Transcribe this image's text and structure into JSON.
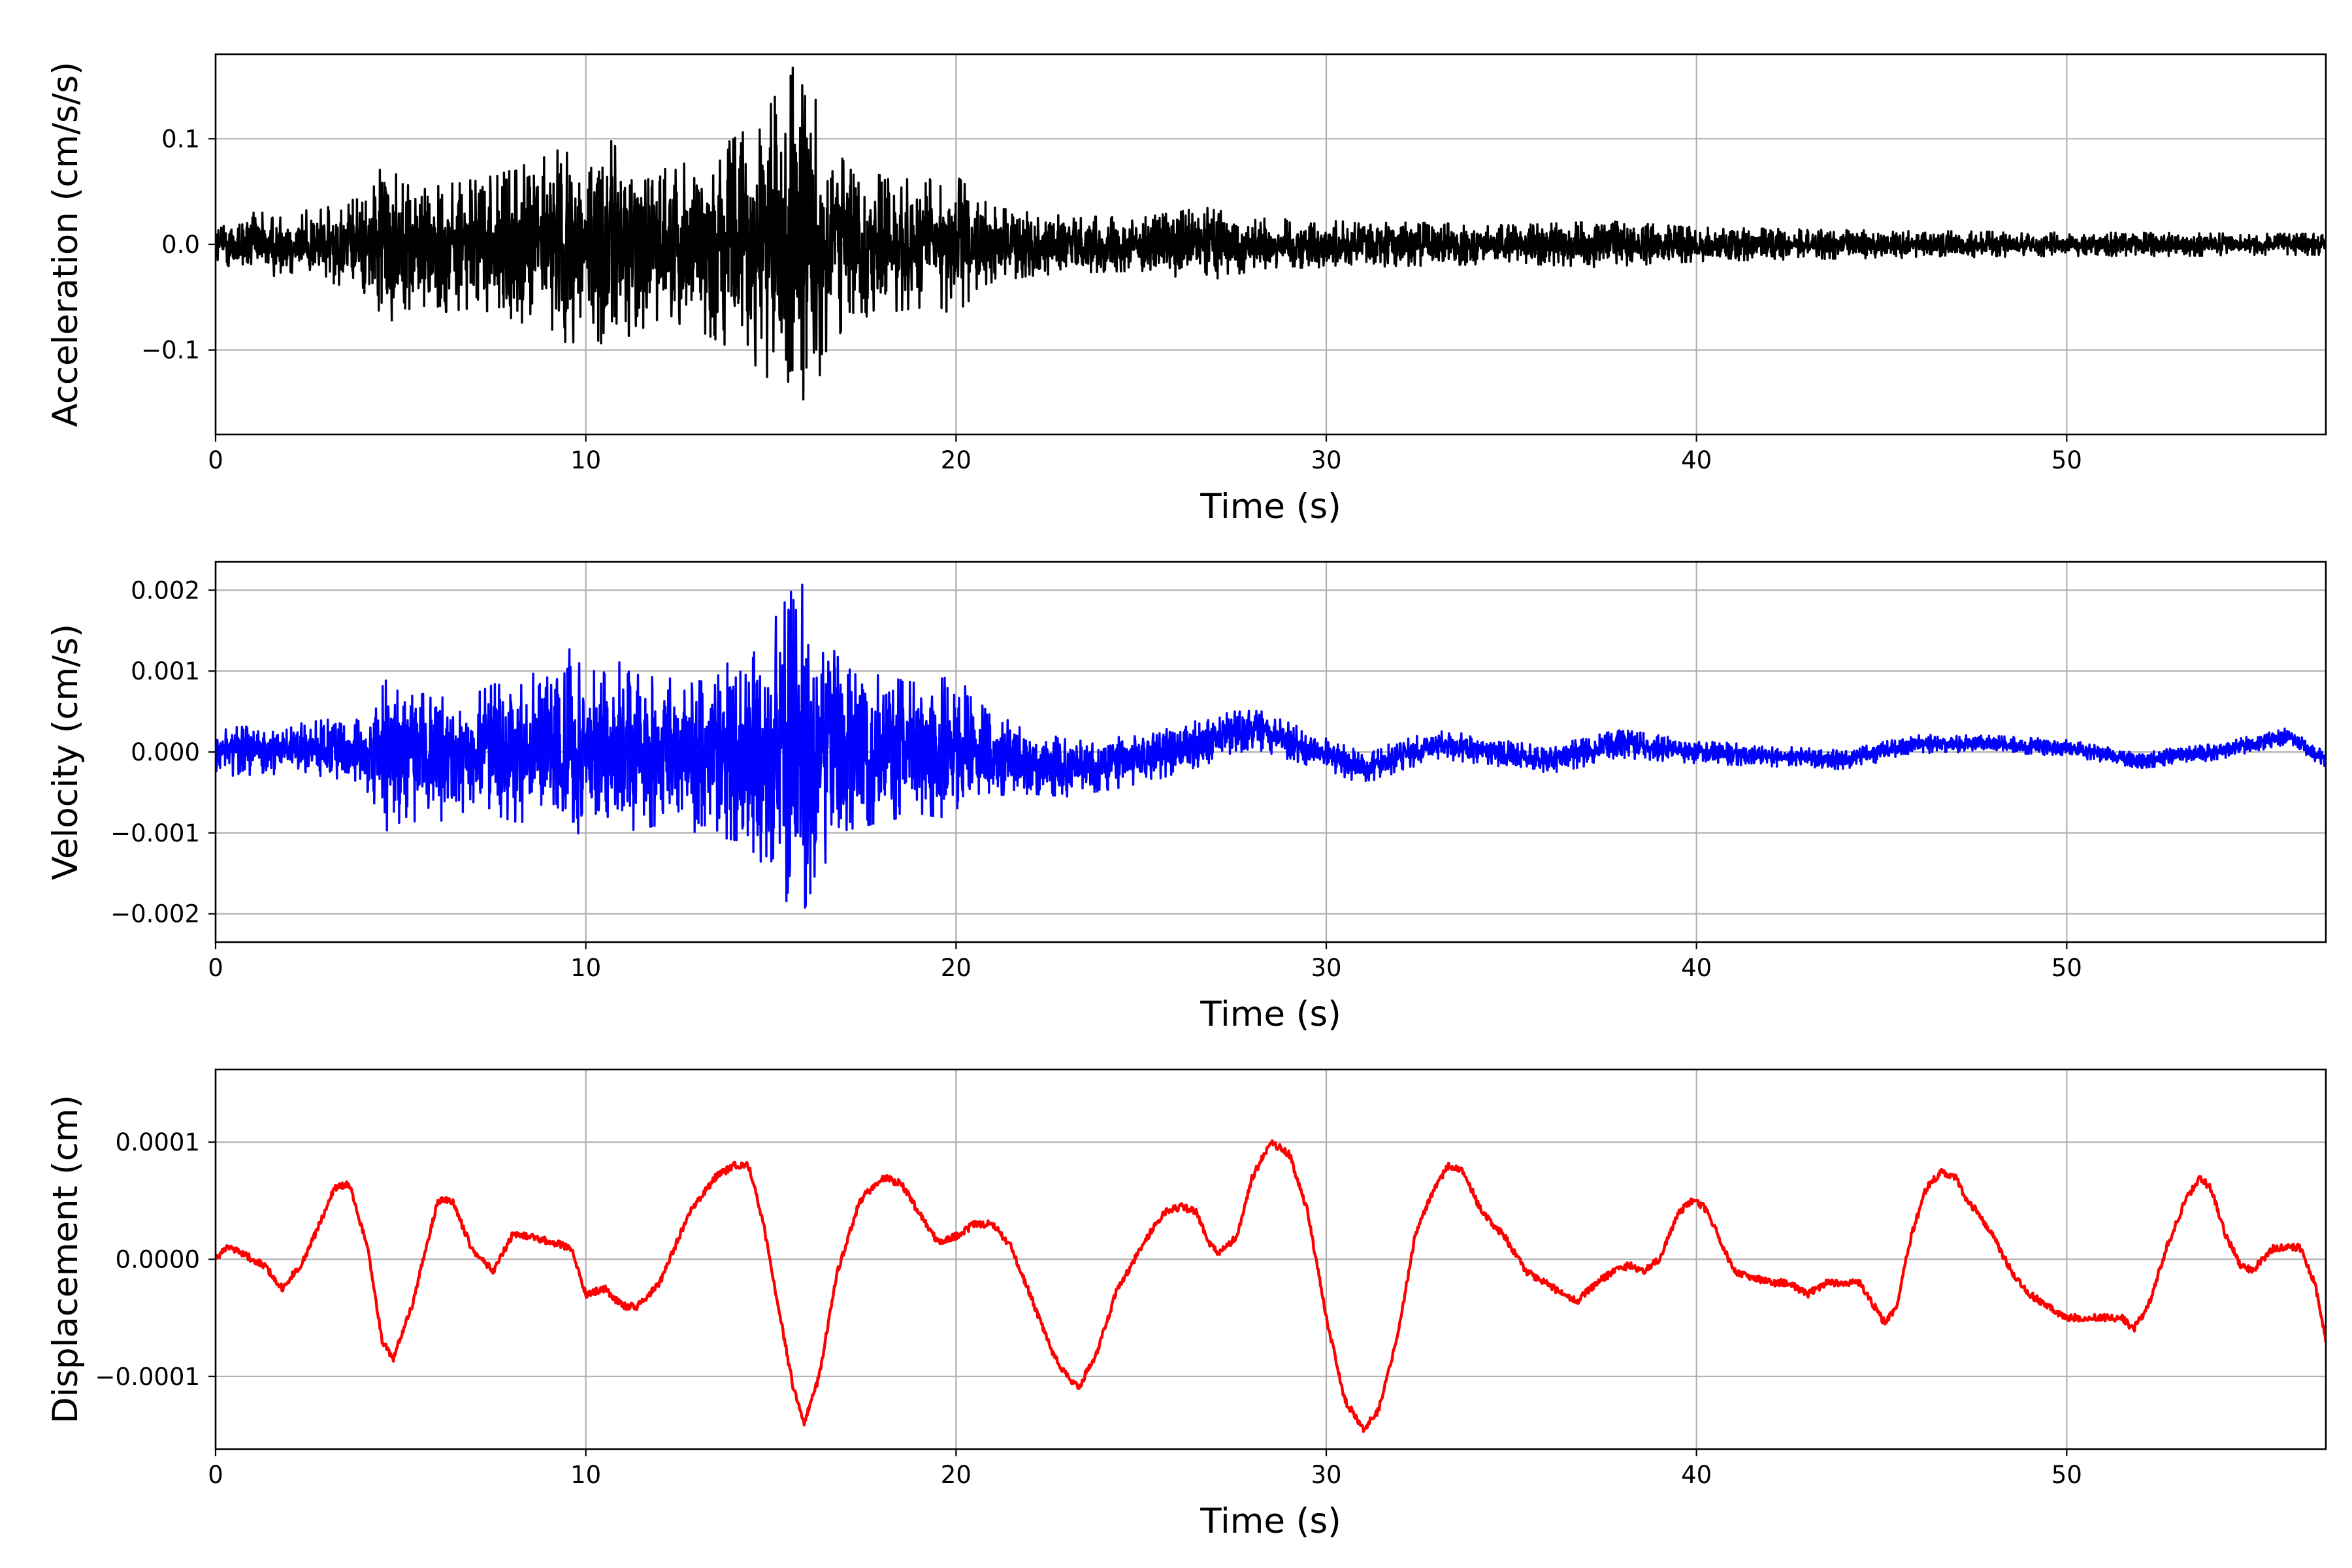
{
  "chart_data": [
    {
      "type": "line",
      "xlabel": "Time (s)",
      "ylabel": "Acceleration (cm/s/s)",
      "xlim": [
        0,
        57
      ],
      "ylim": [
        -0.18,
        0.18
      ],
      "xticks": [
        0,
        10,
        20,
        30,
        40,
        50
      ],
      "xtick_labels": [
        "0",
        "10",
        "20",
        "30",
        "40",
        "50"
      ],
      "yticks": [
        -0.1,
        0.0,
        0.1
      ],
      "ytick_labels": [
        "−0.1",
        "0.0",
        "0.1"
      ],
      "grid": true,
      "color": "#000000",
      "series": [
        {
          "x": [
            0,
            1,
            2,
            3,
            4,
            4.6,
            5,
            6,
            7,
            8,
            9,
            9.6,
            10,
            10.6,
            11,
            12,
            13,
            14,
            14.8,
            15.5,
            15.7,
            16,
            16.3,
            17,
            18,
            19,
            20,
            20.6,
            21,
            22,
            23,
            25,
            26.7,
            28,
            30,
            33,
            35,
            37.6,
            40,
            43,
            45,
            48,
            50,
            53,
            55,
            57
          ],
          "envelope": [
            0.02,
            0.03,
            0.03,
            0.035,
            0.045,
            0.08,
            0.06,
            0.065,
            0.06,
            0.07,
            0.085,
            0.095,
            0.08,
            0.1,
            0.09,
            0.07,
            0.08,
            0.1,
            0.12,
            0.165,
            0.17,
            0.13,
            0.14,
            0.075,
            0.065,
            0.06,
            0.065,
            0.045,
            0.035,
            0.03,
            0.027,
            0.025,
            0.035,
            0.025,
            0.022,
            0.02,
            0.018,
            0.022,
            0.016,
            0.014,
            0.013,
            0.012,
            0.011,
            0.011,
            0.01,
            0.01
          ]
        }
      ]
    },
    {
      "type": "line",
      "xlabel": "Time (s)",
      "ylabel": "Velocity (cm/s)",
      "xlim": [
        0,
        57
      ],
      "ylim": [
        -0.00235,
        0.00235
      ],
      "xticks": [
        0,
        10,
        20,
        30,
        40,
        50
      ],
      "xtick_labels": [
        "0",
        "10",
        "20",
        "30",
        "40",
        "50"
      ],
      "yticks": [
        -0.002,
        -0.001,
        0.0,
        0.001,
        0.002
      ],
      "ytick_labels": [
        "−0.002",
        "−0.001",
        "0.000",
        "0.001",
        "0.002"
      ],
      "grid": true,
      "color": "#0000ff",
      "series": [
        {
          "x": [
            0,
            1,
            2,
            3,
            4,
            4.7,
            5,
            6,
            7,
            8,
            9,
            9.7,
            10,
            10.8,
            11,
            12,
            13,
            14,
            14.8,
            15.6,
            15.8,
            16.2,
            17,
            18,
            19,
            20,
            20.8,
            21,
            22,
            23,
            25,
            27,
            28,
            30,
            33,
            35,
            37.6,
            40,
            43,
            45,
            48,
            50,
            53,
            55,
            57
          ],
          "envelope": [
            0.0003,
            0.0003,
            0.0003,
            0.00035,
            0.0004,
            0.001,
            0.0008,
            0.00085,
            0.0007,
            0.0009,
            0.001,
            0.0013,
            0.001,
            0.0012,
            0.001,
            0.0009,
            0.001,
            0.0011,
            0.0014,
            0.002,
            0.0021,
            0.0016,
            0.001,
            0.0009,
            0.0008,
            0.0009,
            0.0006,
            0.0005,
            0.0004,
            0.00035,
            0.0003,
            0.00028,
            0.00025,
            0.0002,
            0.00018,
            0.00016,
            0.00018,
            0.00014,
            0.00012,
            0.00012,
            0.0001,
            0.0001,
            0.0001,
            0.0001,
            0.0001
          ],
          "trend": [
            [
              0,
              0
            ],
            [
              3,
              5e-05
            ],
            [
              5,
              -5e-05
            ],
            [
              8,
              5e-05
            ],
            [
              12,
              0
            ],
            [
              20,
              5e-05
            ],
            [
              23,
              -0.0002
            ],
            [
              25,
              -0.0001
            ],
            [
              28,
              0.0003
            ],
            [
              31,
              -0.0002
            ],
            [
              33,
              0.0001
            ],
            [
              36,
              -0.0001
            ],
            [
              38,
              0.0001
            ],
            [
              40,
              0
            ],
            [
              42,
              -5e-05
            ],
            [
              44,
              -0.0001
            ],
            [
              46,
              0.0001
            ],
            [
              48,
              0.0001
            ],
            [
              50,
              5e-05
            ],
            [
              52,
              -0.0001
            ],
            [
              54,
              0
            ],
            [
              56,
              0.0002
            ],
            [
              57,
              -0.0001
            ]
          ]
        }
      ]
    },
    {
      "type": "line",
      "xlabel": "Time (s)",
      "ylabel": "Displacement (cm)",
      "xlim": [
        0,
        57
      ],
      "ylim": [
        -0.000162,
        0.000162
      ],
      "xticks": [
        0,
        10,
        20,
        30,
        40,
        50
      ],
      "xtick_labels": [
        "0",
        "10",
        "20",
        "30",
        "40",
        "50"
      ],
      "yticks": [
        -0.0001,
        0.0,
        0.0001
      ],
      "ytick_labels": [
        "−0.0001",
        "0.0000",
        "0.0001"
      ],
      "grid": true,
      "color": "#ff0000",
      "series": [
        {
          "x": [
            0,
            0.3,
            0.7,
            1.3,
            1.8,
            2.4,
            3.2,
            3.6,
            4.1,
            4.5,
            4.8,
            5.3,
            6.0,
            6.4,
            6.9,
            7.5,
            8.0,
            8.4,
            9.0,
            9.6,
            10.0,
            10.5,
            11.0,
            11.4,
            12.0,
            12.8,
            13.5,
            14.0,
            14.4,
            14.8,
            15.2,
            15.6,
            15.9,
            16.3,
            16.8,
            17.4,
            18.0,
            18.5,
            19.0,
            19.5,
            20.0,
            20.5,
            21.0,
            21.5,
            22.0,
            22.6,
            23.0,
            23.3,
            23.8,
            24.3,
            25.0,
            25.6,
            26.1,
            26.5,
            26.8,
            27.1,
            27.6,
            28.0,
            28.5,
            29.0,
            29.5,
            30.0,
            30.5,
            31.0,
            31.4,
            31.9,
            32.4,
            32.9,
            33.3,
            33.7,
            34.2,
            34.8,
            35.4,
            35.9,
            36.4,
            36.8,
            37.3,
            37.8,
            38.2,
            38.6,
            39.0,
            39.5,
            39.9,
            40.2,
            40.6,
            41.0,
            41.5,
            42.0,
            42.5,
            43.0,
            43.5,
            44.0,
            44.4,
            44.8,
            45.1,
            45.4,
            45.8,
            46.2,
            46.6,
            47.0,
            47.3,
            47.6,
            48.0,
            48.5,
            49.0,
            49.5,
            50.0,
            50.5,
            51.0,
            51.5,
            51.8,
            52.2,
            52.7,
            53.2,
            53.6,
            53.9,
            54.3,
            54.7,
            55.0,
            55.3,
            55.6,
            56.0,
            56.3,
            56.7,
            57.0
          ],
          "values": [
            0,
            1e-05,
            5e-06,
            -5e-06,
            -2.5e-05,
            0,
            6e-05,
            6.5e-05,
            1e-05,
            -7e-05,
            -8.5e-05,
            -4e-05,
            5e-05,
            5e-05,
            1e-05,
            -1e-05,
            2e-05,
            2e-05,
            1.5e-05,
            1e-05,
            -3e-05,
            -2.5e-05,
            -4e-05,
            -4e-05,
            -2e-05,
            4e-05,
            7e-05,
            8e-05,
            8e-05,
            3e-05,
            -4e-05,
            -0.00011,
            -0.00014,
            -0.0001,
            -1e-05,
            5e-05,
            7e-05,
            6.5e-05,
            4e-05,
            1.5e-05,
            2e-05,
            3e-05,
            3e-05,
            1e-05,
            -3e-05,
            -8e-05,
            -0.0001,
            -0.00011,
            -8e-05,
            -3e-05,
            1e-05,
            4e-05,
            4.5e-05,
            4e-05,
            1.5e-05,
            5e-06,
            2e-05,
            7e-05,
            0.0001,
            9e-05,
            4e-05,
            -5e-05,
            -0.00012,
            -0.000145,
            -0.00013,
            -7e-05,
            2e-05,
            6e-05,
            8e-05,
            7.5e-05,
            4e-05,
            2e-05,
            -1e-05,
            -2e-05,
            -3e-05,
            -3.5e-05,
            -2e-05,
            -1e-05,
            -5e-06,
            -1e-05,
            0,
            4e-05,
            5e-05,
            4.5e-05,
            2e-05,
            -1e-05,
            -1.5e-05,
            -2e-05,
            -2e-05,
            -3e-05,
            -2e-05,
            -2e-05,
            -2e-05,
            -4e-05,
            -5.5e-05,
            -4e-05,
            2e-05,
            6e-05,
            7.5e-05,
            7e-05,
            5e-05,
            4e-05,
            2e-05,
            -1e-05,
            -3e-05,
            -4e-05,
            -5e-05,
            -5e-05,
            -5e-05,
            -5e-05,
            -6e-05,
            -4e-05,
            1e-05,
            5e-05,
            7e-05,
            6e-05,
            2e-05,
            -5e-06,
            -1e-05,
            0,
            1e-05,
            1e-05,
            1e-05,
            -2e-05,
            -7e-05
          ]
        }
      ]
    }
  ]
}
